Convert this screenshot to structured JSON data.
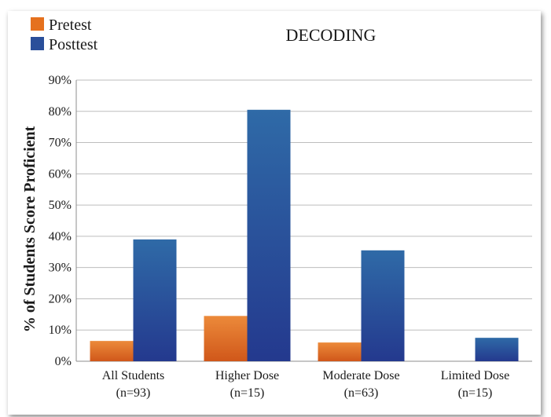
{
  "chart_data": {
    "type": "bar",
    "title": "DECODING",
    "ylabel": "% of Students Score Proficient",
    "xlabel": "",
    "ylim": [
      0,
      90
    ],
    "y_ticks": [
      "0%",
      "10%",
      "20%",
      "30%",
      "40%",
      "50%",
      "60%",
      "70%",
      "80%",
      "90%"
    ],
    "grid": true,
    "legend_position": "top-left",
    "categories": [
      [
        "All Students",
        "(n=93)"
      ],
      [
        "Higher Dose",
        "(n=15)"
      ],
      [
        "Moderate Dose",
        "(n=63)"
      ],
      [
        "Limited Dose",
        "(n=15)"
      ]
    ],
    "series": [
      {
        "name": "Pretest",
        "color": "#e5711e",
        "values": [
          6.5,
          14.5,
          6,
          0
        ]
      },
      {
        "name": "Posttest",
        "color": "#2a4f9a",
        "values": [
          39,
          80.5,
          35.5,
          7.5
        ]
      }
    ]
  }
}
